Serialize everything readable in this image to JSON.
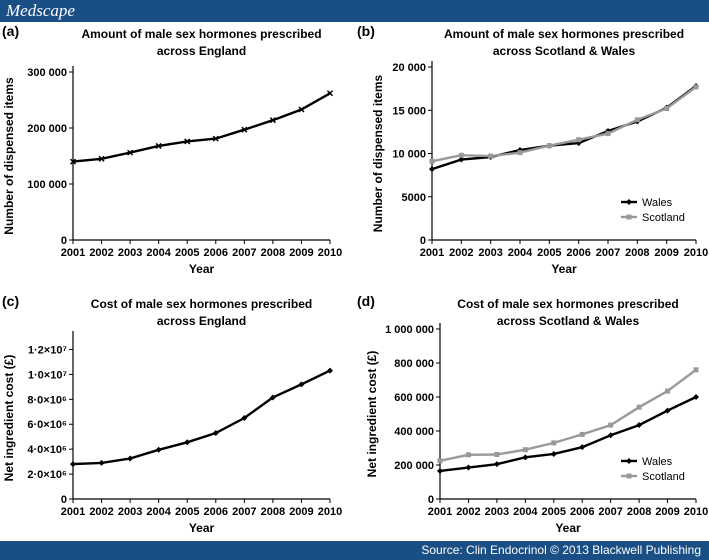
{
  "header": {
    "brand": "Medscape"
  },
  "footer": {
    "source": "Source: Clin Endocrinol © 2013 Blackwell Publishing"
  },
  "chart_data": [
    {
      "panel": "(a)",
      "type": "line",
      "title": [
        "Amount of male sex hormones prescribed",
        "across England"
      ],
      "xlabel": "Year",
      "ylabel": "Number of dispensed items",
      "x": [
        2001,
        2002,
        2003,
        2004,
        2005,
        2006,
        2007,
        2008,
        2009,
        2010
      ],
      "ylim": [
        0,
        300000
      ],
      "yticks": [
        {
          "value": 0,
          "label": "0"
        },
        {
          "value": 100000,
          "label": "100 000"
        },
        {
          "value": 200000,
          "label": "200 000"
        },
        {
          "value": 300000,
          "label": "300 000"
        }
      ],
      "series": [
        {
          "color": "#000000",
          "marker": "x",
          "values": [
            140000,
            145000,
            156000,
            168000,
            176000,
            181000,
            197000,
            214000,
            233000,
            262000
          ]
        }
      ],
      "legend": []
    },
    {
      "panel": "(b)",
      "type": "line",
      "title": [
        "Amount of male sex hormones prescribed",
        "across Scotland & Wales"
      ],
      "xlabel": "Year",
      "ylabel": "Number of dispensed items",
      "x": [
        2001,
        2002,
        2003,
        2004,
        2005,
        2006,
        2007,
        2008,
        2009,
        2010
      ],
      "ylim": [
        0,
        20000
      ],
      "yticks": [
        {
          "value": 0,
          "label": "0"
        },
        {
          "value": 5000,
          "label": "5000"
        },
        {
          "value": 10000,
          "label": "10 000"
        },
        {
          "value": 15000,
          "label": "15 000"
        },
        {
          "value": 20000,
          "label": "20 000"
        }
      ],
      "series": [
        {
          "name": "Wales",
          "color": "#000000",
          "marker": "diamond",
          "values": [
            8200,
            9300,
            9600,
            10400,
            10900,
            11200,
            12600,
            13700,
            15300,
            17800
          ]
        },
        {
          "name": "Scotland",
          "color": "#999999",
          "marker": "square",
          "values": [
            9100,
            9800,
            9700,
            10100,
            10900,
            11600,
            12300,
            13900,
            15200,
            17700
          ]
        }
      ],
      "legend": [
        "Wales",
        "Scotland"
      ],
      "legend_position": "bottom-right"
    },
    {
      "panel": "(c)",
      "type": "line",
      "title": [
        "Cost of male sex hormones prescribed",
        "across England"
      ],
      "xlabel": "Year",
      "ylabel": "Net ingredient cost (£)",
      "x": [
        2001,
        2002,
        2003,
        2004,
        2005,
        2006,
        2007,
        2008,
        2009,
        2010
      ],
      "ylim": [
        0,
        13000000
      ],
      "yticks": [
        {
          "value": 0,
          "label": "0"
        },
        {
          "value": 2000000,
          "label": "2·0×10⁶"
        },
        {
          "value": 4000000,
          "label": "4·0×10⁶"
        },
        {
          "value": 6000000,
          "label": "6·0×10⁶"
        },
        {
          "value": 8000000,
          "label": "8·0×10⁶"
        },
        {
          "value": 10000000,
          "label": "1·0×10⁷"
        },
        {
          "value": 12000000,
          "label": "1·2×10⁷"
        }
      ],
      "series": [
        {
          "color": "#000000",
          "marker": "diamond",
          "values": [
            2800000,
            2900000,
            3250000,
            3950000,
            4550000,
            5300000,
            6500000,
            8150000,
            9200000,
            10300000
          ]
        }
      ],
      "legend": []
    },
    {
      "panel": "(d)",
      "type": "line",
      "title": [
        "Cost of male sex hormones prescribed",
        "across Scotland & Wales"
      ],
      "xlabel": "Year",
      "ylabel": "Net ingredient cost (£)",
      "x": [
        2001,
        2002,
        2003,
        2004,
        2005,
        2006,
        2007,
        2008,
        2009,
        2010
      ],
      "ylim": [
        0,
        1000000
      ],
      "yticks": [
        {
          "value": 0,
          "label": "0"
        },
        {
          "value": 200000,
          "label": "200 000"
        },
        {
          "value": 400000,
          "label": "400 000"
        },
        {
          "value": 600000,
          "label": "600 000"
        },
        {
          "value": 800000,
          "label": "800 000"
        },
        {
          "value": 1000000,
          "label": "1 000 000"
        }
      ],
      "series": [
        {
          "name": "Wales",
          "color": "#000000",
          "marker": "diamond",
          "values": [
            165000,
            185000,
            205000,
            245000,
            265000,
            305000,
            375000,
            435000,
            520000,
            600000
          ]
        },
        {
          "name": "Scotland",
          "color": "#999999",
          "marker": "square",
          "values": [
            225000,
            260000,
            262000,
            290000,
            330000,
            380000,
            435000,
            540000,
            635000,
            760000
          ]
        }
      ],
      "legend": [
        "Wales",
        "Scotland"
      ],
      "legend_position": "bottom-right"
    }
  ]
}
